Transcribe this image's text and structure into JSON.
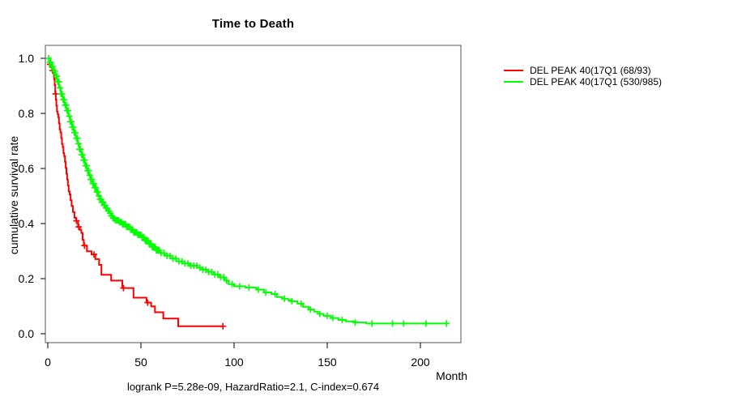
{
  "chart_data": {
    "type": "line",
    "subtype": "kaplan-meier-step-curves",
    "title": "Time to Death",
    "xlabel": "Month",
    "ylabel": "cumulative survival rate",
    "caption": "logrank P=5.28e-09, HazardRatio=2.1, C-index=0.674",
    "xlim": [
      0,
      220
    ],
    "ylim": [
      0.0,
      1.0
    ],
    "xticks": [
      0,
      50,
      100,
      150,
      200
    ],
    "yticks": [
      0.0,
      0.2,
      0.4,
      0.6,
      0.8,
      1.0
    ],
    "ytick_labels": [
      "0.0",
      "0.2",
      "0.4",
      "0.6",
      "0.8",
      "1.0"
    ],
    "grid": false,
    "legend_position": "right-outside",
    "axis_color": "#000000",
    "box_color": "#555555",
    "series": [
      {
        "name": "DEL PEAK 40(17Q1 (68/93)",
        "color": "#ff0000",
        "events_ratio": "68/93",
        "end_time": 94,
        "steps": [
          [
            0,
            1.0
          ],
          [
            0.9,
            0.978
          ],
          [
            1.6,
            0.967
          ],
          [
            2.4,
            0.956
          ],
          [
            3.0,
            0.945
          ],
          [
            3.4,
            0.924
          ],
          [
            3.7,
            0.903
          ],
          [
            4.0,
            0.871
          ],
          [
            4.3,
            0.85
          ],
          [
            4.6,
            0.828
          ],
          [
            4.9,
            0.807
          ],
          [
            5.3,
            0.796
          ],
          [
            5.7,
            0.785
          ],
          [
            6.0,
            0.764
          ],
          [
            6.4,
            0.742
          ],
          [
            6.8,
            0.731
          ],
          [
            7.2,
            0.71
          ],
          [
            7.6,
            0.689
          ],
          [
            8.0,
            0.678
          ],
          [
            8.4,
            0.656
          ],
          [
            8.8,
            0.645
          ],
          [
            9.2,
            0.624
          ],
          [
            9.6,
            0.602
          ],
          [
            10.0,
            0.581
          ],
          [
            10.4,
            0.56
          ],
          [
            10.8,
            0.538
          ],
          [
            11.2,
            0.517
          ],
          [
            11.7,
            0.506
          ],
          [
            12.2,
            0.485
          ],
          [
            12.8,
            0.464
          ],
          [
            13.5,
            0.442
          ],
          [
            14.3,
            0.421
          ],
          [
            15.2,
            0.41
          ],
          [
            16.2,
            0.388
          ],
          [
            17.2,
            0.377
          ],
          [
            18.0,
            0.366
          ],
          [
            18.7,
            0.341
          ],
          [
            19.3,
            0.32
          ],
          [
            21.0,
            0.299
          ],
          [
            23.5,
            0.288
          ],
          [
            25.5,
            0.271
          ],
          [
            27.5,
            0.25
          ],
          [
            28.8,
            0.214
          ],
          [
            34.0,
            0.193
          ],
          [
            40.0,
            0.166
          ],
          [
            46.0,
            0.131
          ],
          [
            53.0,
            0.113
          ],
          [
            55.5,
            0.099
          ],
          [
            57.5,
            0.078
          ],
          [
            62.0,
            0.055
          ],
          [
            70.0,
            0.027
          ]
        ],
        "censor_times": [
          1.3,
          2.6,
          4.2,
          15.4,
          16.6,
          19.7,
          24.8,
          40.6,
          53.6,
          94
        ]
      },
      {
        "name": "DEL PEAK 40(17Q1 (530/985)",
        "color": "#00ff00",
        "events_ratio": "530/985",
        "end_time": 214,
        "steps": [
          [
            0,
            1.0
          ],
          [
            1,
            0.985
          ],
          [
            2,
            0.97
          ],
          [
            3,
            0.953
          ],
          [
            4,
            0.935
          ],
          [
            5,
            0.915
          ],
          [
            6,
            0.893
          ],
          [
            7,
            0.871
          ],
          [
            8,
            0.85
          ],
          [
            9,
            0.83
          ],
          [
            10,
            0.81
          ],
          [
            11,
            0.79
          ],
          [
            12,
            0.77
          ],
          [
            13,
            0.75
          ],
          [
            14,
            0.73
          ],
          [
            15,
            0.71
          ],
          [
            16,
            0.69
          ],
          [
            17,
            0.67
          ],
          [
            18,
            0.65
          ],
          [
            19,
            0.63
          ],
          [
            20,
            0.61
          ],
          [
            21,
            0.592
          ],
          [
            22,
            0.576
          ],
          [
            23,
            0.56
          ],
          [
            24,
            0.545
          ],
          [
            25,
            0.53
          ],
          [
            26,
            0.515
          ],
          [
            27,
            0.5
          ],
          [
            28,
            0.488
          ],
          [
            29,
            0.477
          ],
          [
            30,
            0.466
          ],
          [
            31,
            0.456
          ],
          [
            32,
            0.446
          ],
          [
            33,
            0.437
          ],
          [
            34,
            0.428
          ],
          [
            35,
            0.419
          ],
          [
            36,
            0.412
          ],
          [
            38,
            0.405
          ],
          [
            40,
            0.398
          ],
          [
            42,
            0.388
          ],
          [
            44,
            0.378
          ],
          [
            46,
            0.368
          ],
          [
            48,
            0.359
          ],
          [
            50,
            0.35
          ],
          [
            52,
            0.338
          ],
          [
            54,
            0.326
          ],
          [
            56,
            0.315
          ],
          [
            58,
            0.303
          ],
          [
            60,
            0.293
          ],
          [
            63,
            0.283
          ],
          [
            66,
            0.273
          ],
          [
            69,
            0.263
          ],
          [
            72,
            0.255
          ],
          [
            76,
            0.247
          ],
          [
            80,
            0.24
          ],
          [
            83,
            0.232
          ],
          [
            86,
            0.224
          ],
          [
            89,
            0.215
          ],
          [
            92,
            0.205
          ],
          [
            95,
            0.193
          ],
          [
            97,
            0.18
          ],
          [
            100,
            0.172
          ],
          [
            106,
            0.168
          ],
          [
            112,
            0.16
          ],
          [
            116,
            0.15
          ],
          [
            120,
            0.144
          ],
          [
            123,
            0.133
          ],
          [
            126,
            0.127
          ],
          [
            129,
            0.122
          ],
          [
            131,
            0.118
          ],
          [
            134,
            0.109
          ],
          [
            137,
            0.098
          ],
          [
            140,
            0.088
          ],
          [
            143,
            0.08
          ],
          [
            145,
            0.072
          ],
          [
            148,
            0.065
          ],
          [
            152,
            0.057
          ],
          [
            156,
            0.05
          ],
          [
            160,
            0.045
          ],
          [
            165,
            0.041
          ],
          [
            171,
            0.037
          ]
        ],
        "censor_times": [
          99,
          103,
          108,
          113,
          117,
          122,
          127,
          131,
          136,
          141,
          146,
          150,
          153,
          158,
          165,
          174,
          185,
          191,
          203,
          214
        ],
        "censor_dense": [
          {
            "from": 0.5,
            "to": 60,
            "step": 0.55
          },
          {
            "from": 60.8,
            "to": 96,
            "step": 1.6
          }
        ]
      }
    ]
  }
}
